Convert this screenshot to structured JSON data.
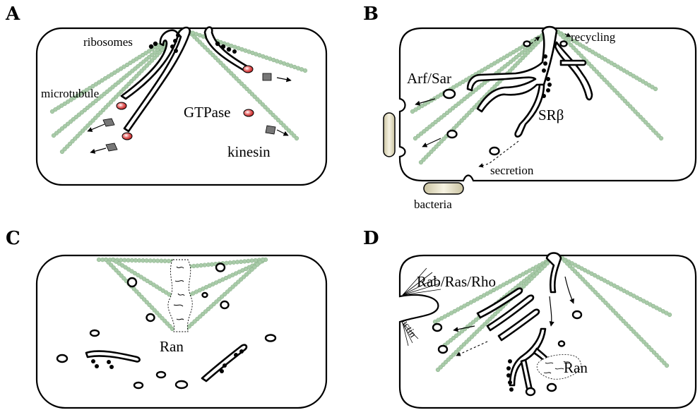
{
  "panels": {
    "a": {
      "letter": "A",
      "labels": {
        "ribosomes": "ribosomes",
        "microtubule": "microtubule",
        "gtpase": "GTPase",
        "kinesin": "kinesin"
      }
    },
    "b": {
      "letter": "B",
      "labels": {
        "recycling": "recycling",
        "arf_sar": "Arf/Sar",
        "sr_beta": "SRβ",
        "secretion": "secretion",
        "bacteria": "bacteria"
      }
    },
    "c": {
      "letter": "C",
      "labels": {
        "ran": "Ran"
      }
    },
    "d": {
      "letter": "D",
      "labels": {
        "rab_ras_rho": "Rab/Ras/Rho",
        "actin": "actin",
        "ran": "Ran"
      }
    }
  },
  "colors": {
    "microtubule_bead": "#a9cba9",
    "microtubule_bead_stroke": "#86ad86",
    "outline": "#000000",
    "gtpase": "#d94040",
    "kinesin": "#777777",
    "bacteria_fill": "#f2ecd2"
  }
}
